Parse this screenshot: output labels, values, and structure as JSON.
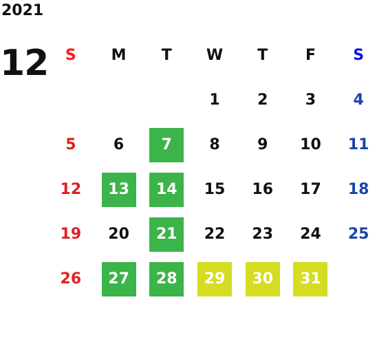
{
  "calendar": {
    "year": "2021",
    "month": "12",
    "weekdays": [
      "S",
      "M",
      "T",
      "W",
      "T",
      "F",
      "S"
    ],
    "colors": {
      "sunday": "#e02020",
      "saturday": "#1a44a8",
      "highlight_green": "#3bb44a",
      "highlight_yellow": "#d4dd22"
    },
    "weeks": [
      [
        {
          "day": "",
          "hl": ""
        },
        {
          "day": "",
          "hl": ""
        },
        {
          "day": "",
          "hl": ""
        },
        {
          "day": "1",
          "hl": ""
        },
        {
          "day": "2",
          "hl": ""
        },
        {
          "day": "3",
          "hl": ""
        },
        {
          "day": "4",
          "hl": ""
        }
      ],
      [
        {
          "day": "5",
          "hl": ""
        },
        {
          "day": "6",
          "hl": ""
        },
        {
          "day": "7",
          "hl": "green"
        },
        {
          "day": "8",
          "hl": ""
        },
        {
          "day": "9",
          "hl": ""
        },
        {
          "day": "10",
          "hl": ""
        },
        {
          "day": "11",
          "hl": ""
        }
      ],
      [
        {
          "day": "12",
          "hl": ""
        },
        {
          "day": "13",
          "hl": "green"
        },
        {
          "day": "14",
          "hl": "green"
        },
        {
          "day": "15",
          "hl": ""
        },
        {
          "day": "16",
          "hl": ""
        },
        {
          "day": "17",
          "hl": ""
        },
        {
          "day": "18",
          "hl": ""
        }
      ],
      [
        {
          "day": "19",
          "hl": ""
        },
        {
          "day": "20",
          "hl": ""
        },
        {
          "day": "21",
          "hl": "green"
        },
        {
          "day": "22",
          "hl": ""
        },
        {
          "day": "23",
          "hl": ""
        },
        {
          "day": "24",
          "hl": ""
        },
        {
          "day": "25",
          "hl": ""
        }
      ],
      [
        {
          "day": "26",
          "hl": ""
        },
        {
          "day": "27",
          "hl": "green"
        },
        {
          "day": "28",
          "hl": "green"
        },
        {
          "day": "29",
          "hl": "yellow"
        },
        {
          "day": "30",
          "hl": "yellow"
        },
        {
          "day": "31",
          "hl": "yellow"
        },
        {
          "day": "",
          "hl": ""
        }
      ]
    ]
  }
}
